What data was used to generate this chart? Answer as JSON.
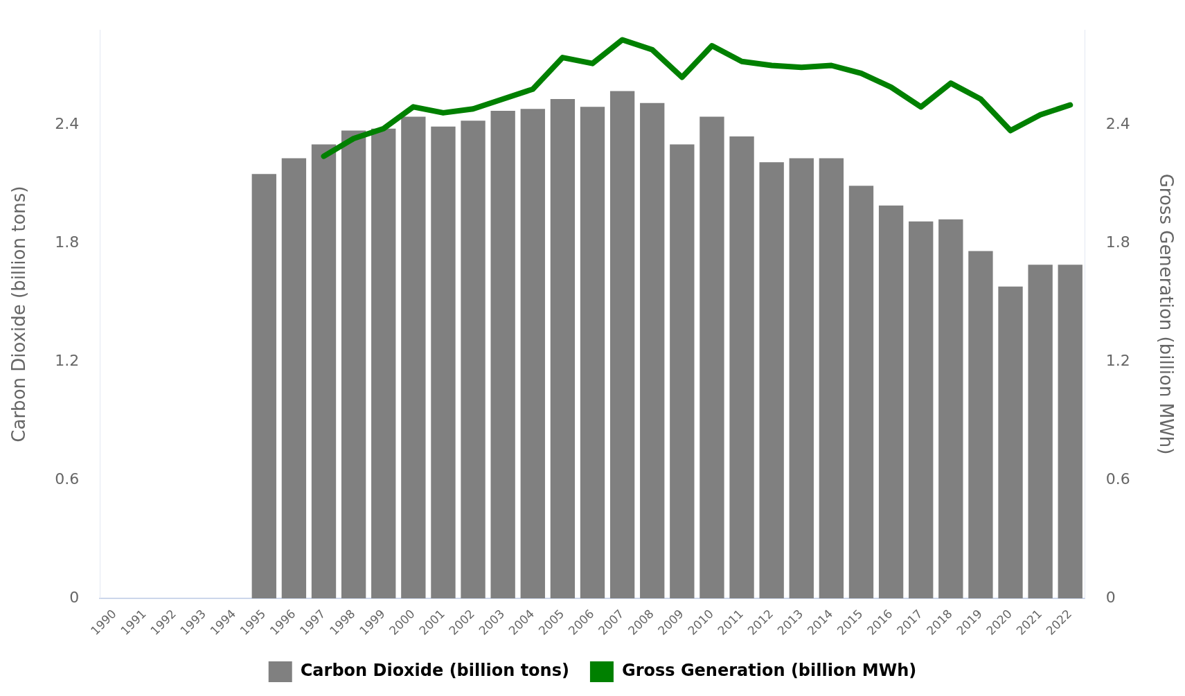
{
  "chart_data": {
    "type": "bar",
    "ylabel": "Carbon Dioxide (billion tons)",
    "y2label": "Gross Generation (billion MWh)",
    "categories": [
      "1990",
      "1991",
      "1992",
      "1993",
      "1994",
      "1995",
      "1996",
      "1997",
      "1998",
      "1999",
      "2000",
      "2001",
      "2002",
      "2003",
      "2004",
      "2005",
      "2006",
      "2007",
      "2008",
      "2009",
      "2010",
      "2011",
      "2012",
      "2013",
      "2014",
      "2015",
      "2016",
      "2017",
      "2018",
      "2019",
      "2020",
      "2021",
      "2022"
    ],
    "series": [
      {
        "name": "Carbon Dioxide (billion tons)",
        "color": "#808080",
        "values": [
          null,
          null,
          null,
          null,
          null,
          2.15,
          2.23,
          2.3,
          2.37,
          2.38,
          2.44,
          2.39,
          2.42,
          2.47,
          2.48,
          2.53,
          2.49,
          2.57,
          2.51,
          2.3,
          2.44,
          2.34,
          2.21,
          2.23,
          2.23,
          2.09,
          1.99,
          1.91,
          1.92,
          1.76,
          1.58,
          1.69,
          1.69
        ]
      },
      {
        "name": "Gross Generation (billion MWh)",
        "type": "line",
        "axis": "y2",
        "color": "#008000",
        "values": [
          null,
          null,
          null,
          null,
          null,
          null,
          null,
          2.24,
          2.33,
          2.38,
          2.49,
          2.46,
          2.48,
          2.53,
          2.58,
          2.74,
          2.71,
          2.83,
          2.78,
          2.64,
          2.8,
          2.72,
          2.7,
          2.69,
          2.7,
          2.66,
          2.59,
          2.49,
          2.61,
          2.53,
          2.37,
          2.45,
          2.5
        ]
      }
    ],
    "ylim": [
      0,
      2.88
    ],
    "yticks": [
      0,
      0.6,
      1.2,
      1.8,
      2.4
    ],
    "y2lim": [
      0,
      2.88
    ],
    "y2ticks": [
      0,
      0.6,
      1.2,
      1.8,
      2.4
    ],
    "grid": false,
    "legend": "bottom",
    "marker": "none",
    "line_style": "solid"
  }
}
